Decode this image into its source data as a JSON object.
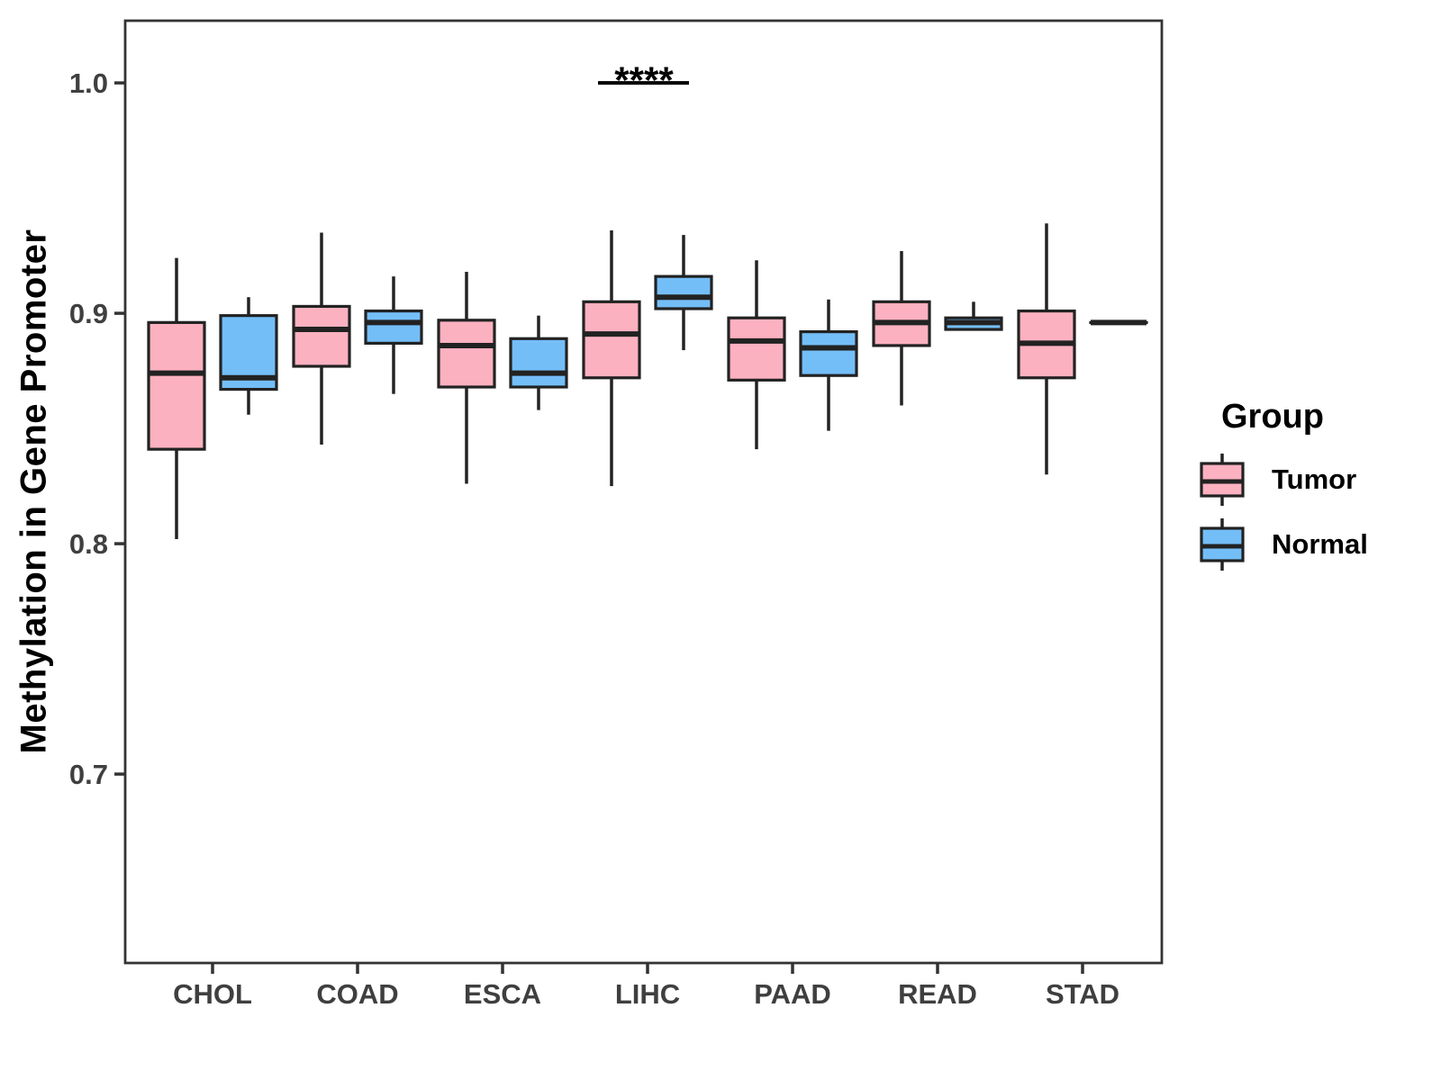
{
  "figure": {
    "background": "#ffffff"
  },
  "legend": {
    "title": "Group",
    "items": [
      {
        "label": "Tumor",
        "color": "#FCB1C0"
      },
      {
        "label": "Normal",
        "color": "#74BEF8"
      }
    ]
  },
  "chart_data": {
    "type": "boxplot",
    "title": "",
    "xlabel": "",
    "ylabel": "Methylation in Gene Promoter",
    "categories": [
      "CHOL",
      "COAD",
      "ESCA",
      "LIHC",
      "PAAD",
      "READ",
      "STAD"
    ],
    "yticks": [
      1.0,
      0.9,
      0.8,
      0.7
    ],
    "ytick_labels": [
      "1.0",
      "0.9",
      "0.8",
      "0.7"
    ],
    "ylim": [
      0.618,
      1.027
    ],
    "grid": false,
    "legend_position": "right",
    "colors": {
      "box_border": "#222222",
      "axis": "#333333",
      "tick_label": "#3f3f3f"
    },
    "series": [
      {
        "name": "Tumor",
        "color": "#FCB1C0",
        "boxes": [
          {
            "category": "CHOL",
            "min": 0.802,
            "q1": 0.841,
            "median": 0.874,
            "q3": 0.896,
            "max": 0.924
          },
          {
            "category": "COAD",
            "min": 0.843,
            "q1": 0.877,
            "median": 0.893,
            "q3": 0.903,
            "max": 0.935
          },
          {
            "category": "ESCA",
            "min": 0.826,
            "q1": 0.868,
            "median": 0.886,
            "q3": 0.897,
            "max": 0.918
          },
          {
            "category": "LIHC",
            "min": 0.825,
            "q1": 0.872,
            "median": 0.891,
            "q3": 0.905,
            "max": 0.936
          },
          {
            "category": "PAAD",
            "min": 0.841,
            "q1": 0.871,
            "median": 0.888,
            "q3": 0.898,
            "max": 0.923
          },
          {
            "category": "READ",
            "min": 0.86,
            "q1": 0.886,
            "median": 0.896,
            "q3": 0.905,
            "max": 0.927
          },
          {
            "category": "STAD",
            "min": 0.83,
            "q1": 0.872,
            "median": 0.887,
            "q3": 0.901,
            "max": 0.939
          }
        ]
      },
      {
        "name": "Normal",
        "color": "#74BEF8",
        "boxes": [
          {
            "category": "CHOL",
            "min": 0.856,
            "q1": 0.867,
            "median": 0.872,
            "q3": 0.899,
            "max": 0.907
          },
          {
            "category": "COAD",
            "min": 0.865,
            "q1": 0.887,
            "median": 0.896,
            "q3": 0.901,
            "max": 0.916
          },
          {
            "category": "ESCA",
            "min": 0.858,
            "q1": 0.868,
            "median": 0.874,
            "q3": 0.889,
            "max": 0.899
          },
          {
            "category": "LIHC",
            "min": 0.884,
            "q1": 0.902,
            "median": 0.907,
            "q3": 0.916,
            "max": 0.934
          },
          {
            "category": "PAAD",
            "min": 0.849,
            "q1": 0.873,
            "median": 0.885,
            "q3": 0.892,
            "max": 0.906
          },
          {
            "category": "READ",
            "min": 0.893,
            "q1": 0.893,
            "median": 0.896,
            "q3": 0.898,
            "max": 0.905
          },
          {
            "category": "STAD",
            "min": 0.896,
            "q1": 0.896,
            "median": 0.896,
            "q3": 0.896,
            "max": 0.896
          }
        ]
      }
    ],
    "significance": {
      "label": "****",
      "category": "LIHC",
      "between": [
        "Tumor",
        "Normal"
      ],
      "y": 1.0
    }
  }
}
